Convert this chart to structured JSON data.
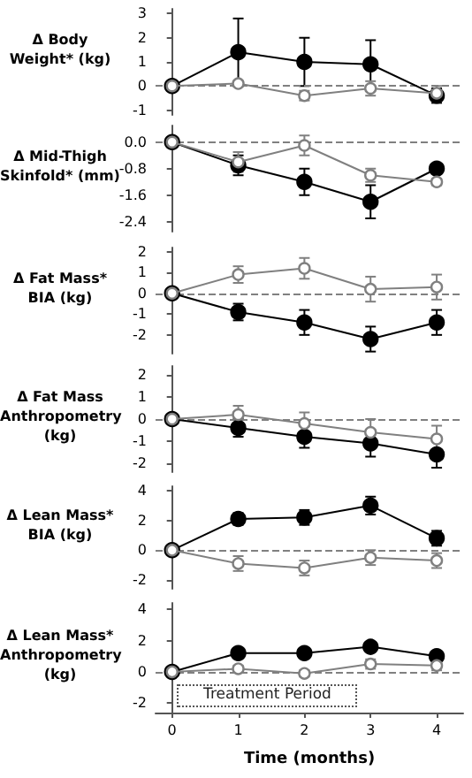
{
  "chart_data": [
    {
      "type": "line",
      "ylabel": "Δ Body Weight* (kg)",
      "x": [
        0,
        1,
        2,
        3,
        4
      ],
      "ylim": [
        -1.2,
        3.2
      ],
      "yticks": [
        -1,
        0,
        1,
        2,
        3
      ],
      "tick_labels": "y",
      "marker": "circle",
      "ref_lines": [
        {
          "axis": "y",
          "value": 0,
          "line_style": "dashed",
          "color": "#808080"
        }
      ],
      "series": [
        {
          "color": "#000000",
          "values": [
            0,
            1.4,
            1.0,
            0.9,
            -0.4
          ],
          "errors": [
            0,
            1.4,
            1.0,
            1.0,
            0.3
          ]
        },
        {
          "color": "#808080",
          "values": [
            0,
            0.1,
            -0.4,
            -0.1,
            -0.3
          ],
          "errors": [
            0,
            0.1,
            0.2,
            0.3,
            0.3
          ]
        }
      ]
    },
    {
      "type": "line",
      "ylabel": "Δ Mid-Thigh Skinfold* (mm)",
      "x": [
        0,
        1,
        2,
        3,
        4
      ],
      "ylim": [
        -2.7,
        0.5
      ],
      "yticks": [
        {
          "value": 0,
          "label": "0.0"
        },
        -0.8,
        -1.6,
        -2.4
      ],
      "tick_labels": "y",
      "marker": "circle",
      "ref_lines": [
        {
          "axis": "y",
          "value": 0,
          "line_style": "dashed",
          "color": "#808080"
        }
      ],
      "series": [
        {
          "color": "#000000",
          "values": [
            0,
            -0.7,
            -1.2,
            -1.8,
            -0.8
          ],
          "errors": [
            0,
            0.3,
            0.4,
            0.5,
            0.1
          ]
        },
        {
          "color": "#808080",
          "values": [
            0,
            -0.6,
            -0.1,
            -1.0,
            -1.2
          ],
          "errors": [
            0,
            0.3,
            0.3,
            0.2,
            0.1
          ]
        }
      ]
    },
    {
      "type": "line",
      "ylabel": "Δ Fat Mass* BIA (kg)",
      "x": [
        0,
        1,
        2,
        3,
        4
      ],
      "ylim": [
        -2.9,
        2.2
      ],
      "yticks": [
        -2,
        -1,
        0,
        1,
        2
      ],
      "tick_labels": "y",
      "marker": "circle",
      "ref_lines": [
        {
          "axis": "y",
          "value": 0,
          "line_style": "dashed",
          "color": "#808080"
        }
      ],
      "series": [
        {
          "color": "#000000",
          "values": [
            0,
            -0.9,
            -1.4,
            -2.2,
            -1.4
          ],
          "errors": [
            0,
            0.4,
            0.6,
            0.6,
            0.6
          ]
        },
        {
          "color": "#808080",
          "values": [
            0,
            0.9,
            1.2,
            0.2,
            0.3
          ],
          "errors": [
            0,
            0.4,
            0.5,
            0.6,
            0.6
          ]
        }
      ]
    },
    {
      "type": "line",
      "ylabel": "Δ Fat Mass Anthropometry (kg)",
      "x": [
        0,
        1,
        2,
        3,
        4
      ],
      "ylim": [
        -2.4,
        2.4
      ],
      "yticks": [
        -2,
        -1,
        0,
        1,
        2
      ],
      "tick_labels": "y",
      "marker": "circle",
      "ref_lines": [
        {
          "axis": "y",
          "value": 0,
          "line_style": "dashed",
          "color": "#808080"
        }
      ],
      "series": [
        {
          "color": "#000000",
          "values": [
            0,
            -0.4,
            -0.8,
            -1.1,
            -1.6
          ],
          "errors": [
            0,
            0.4,
            0.5,
            0.6,
            0.6
          ]
        },
        {
          "color": "#808080",
          "values": [
            0,
            0.2,
            -0.2,
            -0.6,
            -0.9
          ],
          "errors": [
            0,
            0.4,
            0.5,
            0.6,
            0.6
          ]
        }
      ]
    },
    {
      "type": "line",
      "ylabel": "Δ Lean Mass* BIA (kg)",
      "x": [
        0,
        1,
        2,
        3,
        4
      ],
      "ylim": [
        -2.6,
        4.3
      ],
      "yticks": [
        -2,
        0,
        2,
        4
      ],
      "tick_labels": "y",
      "marker": "circle",
      "ref_lines": [
        {
          "axis": "y",
          "value": 0,
          "line_style": "dashed",
          "color": "#808080"
        }
      ],
      "series": [
        {
          "color": "#000000",
          "values": [
            0,
            2.1,
            2.2,
            3.0,
            0.8
          ],
          "errors": [
            0,
            0.4,
            0.5,
            0.6,
            0.5
          ]
        },
        {
          "color": "#808080",
          "values": [
            0,
            -0.9,
            -1.2,
            -0.5,
            -0.7
          ],
          "errors": [
            0,
            0.5,
            0.5,
            0.5,
            0.5
          ]
        }
      ]
    },
    {
      "type": "line",
      "ylabel": "Δ Lean Mass* Anthropometry (kg)",
      "xlabel": "Time (months)",
      "x": [
        0,
        1,
        2,
        3,
        4
      ],
      "xlim": [
        -0.25,
        4.4
      ],
      "xticks": [
        0,
        1,
        2,
        3,
        4
      ],
      "ylim": [
        -2.6,
        4.4
      ],
      "yticks": [
        -2,
        0,
        2,
        4
      ],
      "marker": "circle",
      "ref_lines": [
        {
          "axis": "y",
          "value": 0,
          "line_style": "dashed",
          "color": "#808080"
        }
      ],
      "annotations": [
        "Treatment Period"
      ],
      "series": [
        {
          "color": "#000000",
          "values": [
            0,
            1.2,
            1.2,
            1.6,
            1.0
          ],
          "errors": [
            0,
            0.2,
            0.2,
            0.3,
            0.3
          ]
        },
        {
          "color": "#808080",
          "values": [
            0,
            0.2,
            -0.1,
            0.5,
            0.4
          ],
          "errors": [
            0,
            0.2,
            0.2,
            0.3,
            0.3
          ]
        }
      ]
    }
  ]
}
